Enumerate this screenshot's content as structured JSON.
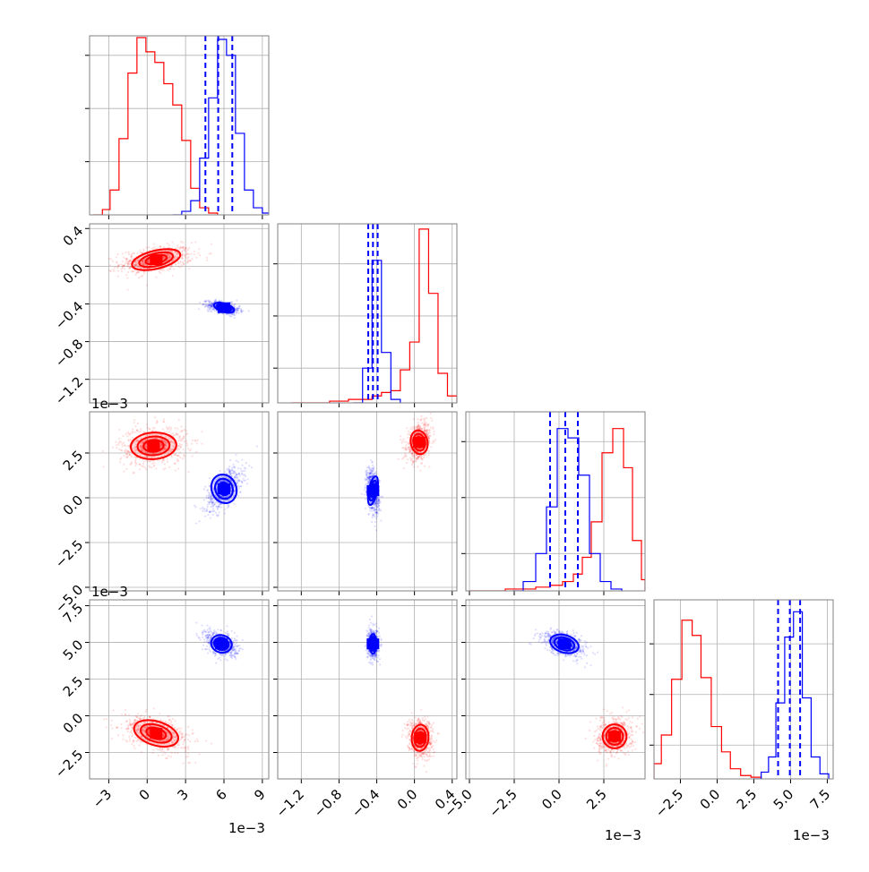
{
  "chart_data": {
    "type": "corner",
    "colors": {
      "red": "#ff0000",
      "blue": "#0000ff",
      "grid": "#b0b0b0",
      "frame": "#808080"
    },
    "grid": true,
    "offset_label": "1e−3",
    "parameters": [
      {
        "range": [
          -4.5,
          9.5
        ],
        "ticks": [
          -3,
          0,
          3,
          6,
          9
        ],
        "tick_labels": [
          "−3",
          "0",
          "3",
          "6",
          "9"
        ],
        "offset": "1e−3"
      },
      {
        "range": [
          -1.45,
          0.45
        ],
        "ticks": [
          -1.2,
          -0.8,
          -0.4,
          0.0,
          0.4
        ],
        "tick_labels": [
          "−1.2",
          "−0.8",
          "−0.4",
          "0.0",
          "0.4"
        ],
        "offset": "1e−3"
      },
      {
        "range": [
          -5.2,
          4.8
        ],
        "ticks": [
          -5.0,
          -2.5,
          0.0,
          2.5
        ],
        "tick_labels": [
          "−5.0",
          "−2.5",
          "0.0",
          "2.5"
        ],
        "offset": "1e−3"
      },
      {
        "range": [
          -4.3,
          7.9
        ],
        "ticks": [
          -2.5,
          0.0,
          2.5,
          5.0,
          7.5
        ],
        "tick_labels": [
          "−2.5",
          "0.0",
          "2.5",
          "5.0",
          "7.5"
        ],
        "offset": "1e−3"
      }
    ],
    "histograms": [
      {
        "red": [
          [
            -4.2,
            0
          ],
          [
            -3.5,
            0.03
          ],
          [
            -2.9,
            0.14
          ],
          [
            -2.2,
            0.43
          ],
          [
            -1.5,
            0.8
          ],
          [
            -0.8,
            1.0
          ],
          [
            -0.1,
            0.92
          ],
          [
            0.6,
            0.86
          ],
          [
            1.3,
            0.74
          ],
          [
            2.0,
            0.62
          ],
          [
            2.7,
            0.42
          ],
          [
            3.4,
            0.15
          ],
          [
            4.1,
            0.04
          ],
          [
            4.8,
            0.01
          ],
          [
            5.5,
            0
          ]
        ],
        "blue": [
          [
            2.0,
            0
          ],
          [
            2.7,
            0.02
          ],
          [
            3.4,
            0.08
          ],
          [
            4.1,
            0.32
          ],
          [
            4.8,
            0.66
          ],
          [
            5.5,
            0.99
          ],
          [
            6.2,
            0.9
          ],
          [
            6.9,
            0.46
          ],
          [
            7.6,
            0.14
          ],
          [
            8.3,
            0.04
          ],
          [
            9.0,
            0.01
          ],
          [
            9.7,
            0
          ]
        ],
        "quantiles": [
          4.55,
          5.55,
          6.65
        ],
        "ymax": 1.0,
        "yticks": [
          0.3,
          0.6,
          0.9
        ]
      },
      {
        "red": [
          [
            -1.3,
            0
          ],
          [
            -1.1,
            0
          ],
          [
            -0.9,
            0.01
          ],
          [
            -0.7,
            0.02
          ],
          [
            -0.55,
            0.02
          ],
          [
            -0.45,
            0.04
          ],
          [
            -0.35,
            0.06
          ],
          [
            -0.25,
            0.07
          ],
          [
            -0.15,
            0.19
          ],
          [
            -0.05,
            0.35
          ],
          [
            0.05,
            1.0
          ],
          [
            0.15,
            0.63
          ],
          [
            0.25,
            0.17
          ],
          [
            0.35,
            0.04
          ],
          [
            0.45,
            0
          ]
        ],
        "blue": [
          [
            -0.65,
            0
          ],
          [
            -0.55,
            0.2
          ],
          [
            -0.45,
            0.82
          ],
          [
            -0.35,
            0.29
          ],
          [
            -0.25,
            0.02
          ],
          [
            -0.15,
            0
          ]
        ],
        "quantiles": [
          -0.49,
          -0.44,
          -0.39
        ],
        "ymax": 1.02,
        "yticks": [
          0.2,
          0.5,
          0.8
        ]
      },
      {
        "red": [
          [
            -5.0,
            0
          ],
          [
            -3.0,
            0.01
          ],
          [
            -1.3,
            0.02
          ],
          [
            -0.5,
            0.03
          ],
          [
            0.2,
            0.05
          ],
          [
            0.8,
            0.09
          ],
          [
            1.3,
            0.18
          ],
          [
            1.8,
            0.37
          ],
          [
            2.4,
            0.74
          ],
          [
            3.0,
            0.87
          ],
          [
            3.6,
            0.66
          ],
          [
            4.1,
            0.27
          ],
          [
            4.6,
            0.06
          ],
          [
            4.8,
            0
          ]
        ],
        "blue": [
          [
            -2.6,
            0
          ],
          [
            -2.0,
            0.05
          ],
          [
            -1.3,
            0.2
          ],
          [
            -0.7,
            0.45
          ],
          [
            -0.1,
            0.87
          ],
          [
            0.5,
            0.82
          ],
          [
            1.1,
            0.62
          ],
          [
            1.7,
            0.2
          ],
          [
            2.3,
            0.05
          ],
          [
            2.9,
            0.01
          ],
          [
            3.5,
            0
          ]
        ],
        "quantiles": [
          -0.5,
          0.35,
          1.05
        ],
        "ymax": 0.95,
        "yticks": [
          0.2,
          0.5,
          0.8
        ]
      },
      {
        "red": [
          [
            -4.3,
            0.09
          ],
          [
            -3.8,
            0.26
          ],
          [
            -3.1,
            0.59
          ],
          [
            -2.4,
            0.94
          ],
          [
            -1.7,
            0.85
          ],
          [
            -1.1,
            0.6
          ],
          [
            -0.4,
            0.31
          ],
          [
            0.3,
            0.16
          ],
          [
            0.9,
            0.06
          ],
          [
            1.6,
            0.02
          ],
          [
            2.3,
            0.01
          ],
          [
            3.0,
            0
          ]
        ],
        "blue": [
          [
            2.5,
            0
          ],
          [
            3.0,
            0.04
          ],
          [
            3.5,
            0.13
          ],
          [
            4.0,
            0.45
          ],
          [
            4.6,
            0.84
          ],
          [
            5.2,
            0.99
          ],
          [
            5.8,
            0.48
          ],
          [
            6.4,
            0.13
          ],
          [
            7.0,
            0.03
          ],
          [
            7.6,
            0
          ]
        ],
        "quantiles": [
          4.15,
          4.95,
          5.65
        ],
        "ymax": 1.05,
        "yticks": [
          0.2,
          0.5,
          0.8
        ]
      }
    ],
    "pairs": [
      {
        "row": 1,
        "col": 0,
        "red": {
          "center": [
            0.7,
            0.07
          ],
          "spread": [
            2.6,
            0.13
          ],
          "rho": 0.35
        },
        "blue": {
          "center": [
            6.0,
            -0.44
          ],
          "spread": [
            1.1,
            0.06
          ],
          "rho": -0.45
        }
      },
      {
        "row": 2,
        "col": 0,
        "red": {
          "center": [
            0.5,
            2.9
          ],
          "spread": [
            2.4,
            1.0
          ],
          "rho": 0.1
        },
        "blue": {
          "center": [
            6.0,
            0.5
          ],
          "spread": [
            1.3,
            1.1
          ],
          "rho": 0.6
        }
      },
      {
        "row": 2,
        "col": 1,
        "red": {
          "center": [
            0.05,
            3.1
          ],
          "spread": [
            0.12,
            0.9
          ],
          "rho": 0.3
        },
        "blue": {
          "center": [
            -0.44,
            0.4
          ],
          "spread": [
            0.06,
            1.1
          ],
          "rho": -0.3
        }
      },
      {
        "row": 3,
        "col": 0,
        "red": {
          "center": [
            0.7,
            -1.2
          ],
          "spread": [
            2.4,
            1.1
          ],
          "rho": -0.45
        },
        "blue": {
          "center": [
            5.8,
            4.9
          ],
          "spread": [
            1.1,
            0.8
          ],
          "rho": -0.4
        }
      },
      {
        "row": 3,
        "col": 1,
        "red": {
          "center": [
            0.06,
            -1.5
          ],
          "spread": [
            0.12,
            1.2
          ],
          "rho": -0.1
        },
        "blue": {
          "center": [
            -0.44,
            4.9
          ],
          "spread": [
            0.05,
            0.9
          ],
          "rho": 0.0
        }
      },
      {
        "row": 3,
        "col": 2,
        "red": {
          "center": [
            3.1,
            -1.4
          ],
          "spread": [
            0.9,
            1.1
          ],
          "rho": 0.1
        },
        "blue": {
          "center": [
            0.3,
            4.9
          ],
          "spread": [
            1.1,
            0.8
          ],
          "rho": -0.45
        }
      }
    ]
  }
}
